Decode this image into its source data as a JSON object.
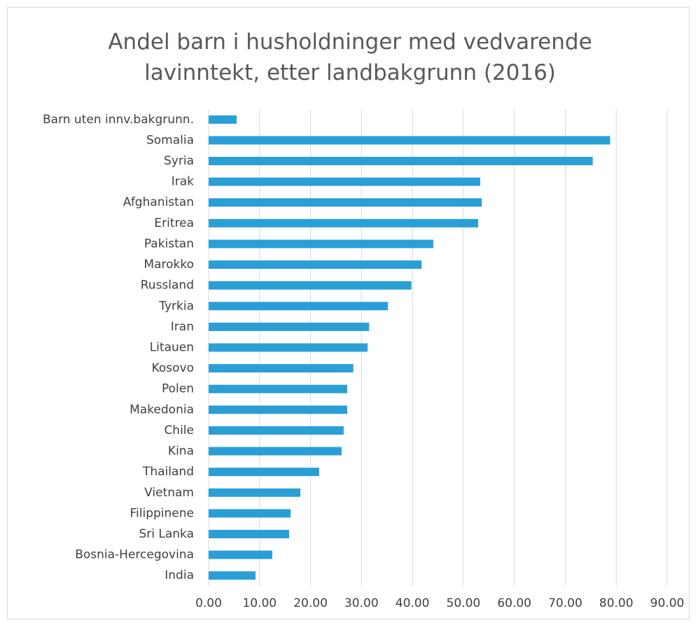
{
  "chart_data": {
    "type": "barh",
    "title": "Andel barn i husholdninger med vedvarende lavinntekt, etter landbakgrunn (2016)",
    "categories": [
      "Barn uten innv.bakgrunn.",
      "Somalia",
      "Syria",
      "Irak",
      "Afghanistan",
      "Eritrea",
      "Pakistan",
      "Marokko",
      "Russland",
      "Tyrkia",
      "Iran",
      "Litauen",
      "Kosovo",
      "Polen",
      "Makedonia",
      "Chile",
      "Kina",
      "Thailand",
      "Vietnam",
      "Filippinene",
      "Sri Lanka",
      "Bosnia-Hercegovina",
      "India"
    ],
    "values": [
      5.5,
      78.8,
      75.4,
      53.3,
      53.6,
      52.9,
      44.1,
      41.8,
      39.8,
      35.2,
      31.5,
      31.2,
      28.4,
      27.2,
      27.2,
      26.5,
      26.1,
      21.7,
      18.0,
      16.1,
      15.8,
      12.5,
      9.2
    ],
    "color": "#2a9fd6",
    "xlim": [
      0,
      90
    ],
    "xticks": [
      {
        "value": 0,
        "label": "0.00"
      },
      {
        "value": 10,
        "label": "10.00"
      },
      {
        "value": 20,
        "label": "20.00"
      },
      {
        "value": 30,
        "label": "30.00"
      },
      {
        "value": 40,
        "label": "40.00"
      },
      {
        "value": 50,
        "label": "50.00"
      },
      {
        "value": 60,
        "label": "60.00"
      },
      {
        "value": 70,
        "label": "70.00"
      },
      {
        "value": 80,
        "label": "80.00"
      },
      {
        "value": 90,
        "label": "90.00"
      }
    ],
    "grid": true
  }
}
